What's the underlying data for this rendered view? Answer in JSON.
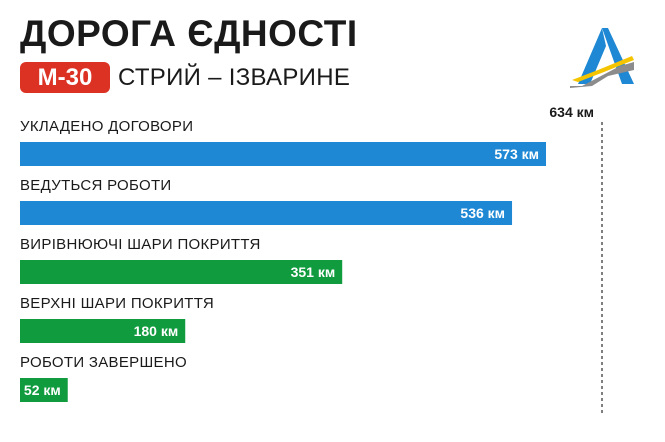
{
  "header": {
    "title": "ДОРОГА ЄДНОСТІ",
    "route_code": "М-30",
    "route_name": "СТРИЙ – ІЗВАРИНЕ"
  },
  "colors": {
    "blue": "#1e88d4",
    "green": "#109b3e",
    "badge": "#dc3223"
  },
  "chart_data": {
    "type": "bar",
    "orientation": "horizontal",
    "unit": "км",
    "total": 634,
    "total_label": "634 км",
    "categories": [
      "УКЛАДЕНО ДОГОВОРИ",
      "ВЕДУТЬСЯ РОБОТИ",
      "ВИРІВНЮЮЧІ ШАРИ ПОКРИТТЯ",
      "ВЕРХНІ ШАРИ ПОКРИТТЯ",
      "РОБОТИ ЗАВЕРШЕНО"
    ],
    "values": [
      573,
      536,
      351,
      180,
      52
    ],
    "value_labels": [
      "573 км",
      "536 км",
      "351 км",
      "180 км",
      "52 км"
    ],
    "bar_colors": [
      "#1e88d4",
      "#1e88d4",
      "#109b3e",
      "#109b3e",
      "#109b3e"
    ],
    "xlim": [
      0,
      634
    ],
    "grid": false,
    "legend": "none"
  }
}
